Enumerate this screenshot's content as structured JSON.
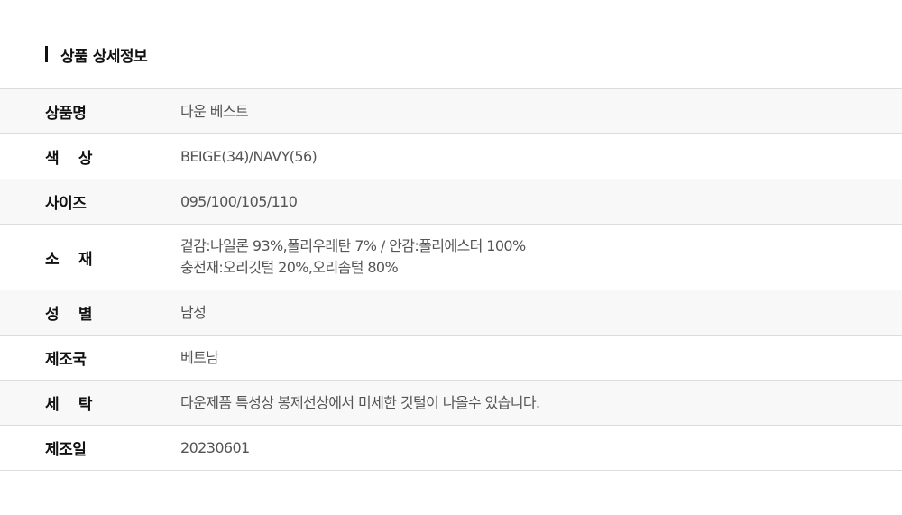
{
  "section_title": "상품 상세정보",
  "rows": [
    {
      "label": "상품명",
      "value": "다운 베스트"
    },
    {
      "label": "색 상",
      "value": "BEIGE(34)/NAVY(56)"
    },
    {
      "label": "사이즈",
      "value": "095/100/105/110"
    },
    {
      "label": "소 재",
      "value": "겉감:나일론 93%,폴리우레탄 7% / 안감:폴리에스터 100%\n 충전재:오리깃털 20%,오리솜털 80%"
    },
    {
      "label": "성 별",
      "value": "남성"
    },
    {
      "label": "제조국",
      "value": "베트남"
    },
    {
      "label": "세 탁",
      "value": "다운제품 특성상 봉제선상에서 미세한 깃털이 나올수 있습니다."
    },
    {
      "label": "제조일",
      "value": "20230601"
    }
  ]
}
